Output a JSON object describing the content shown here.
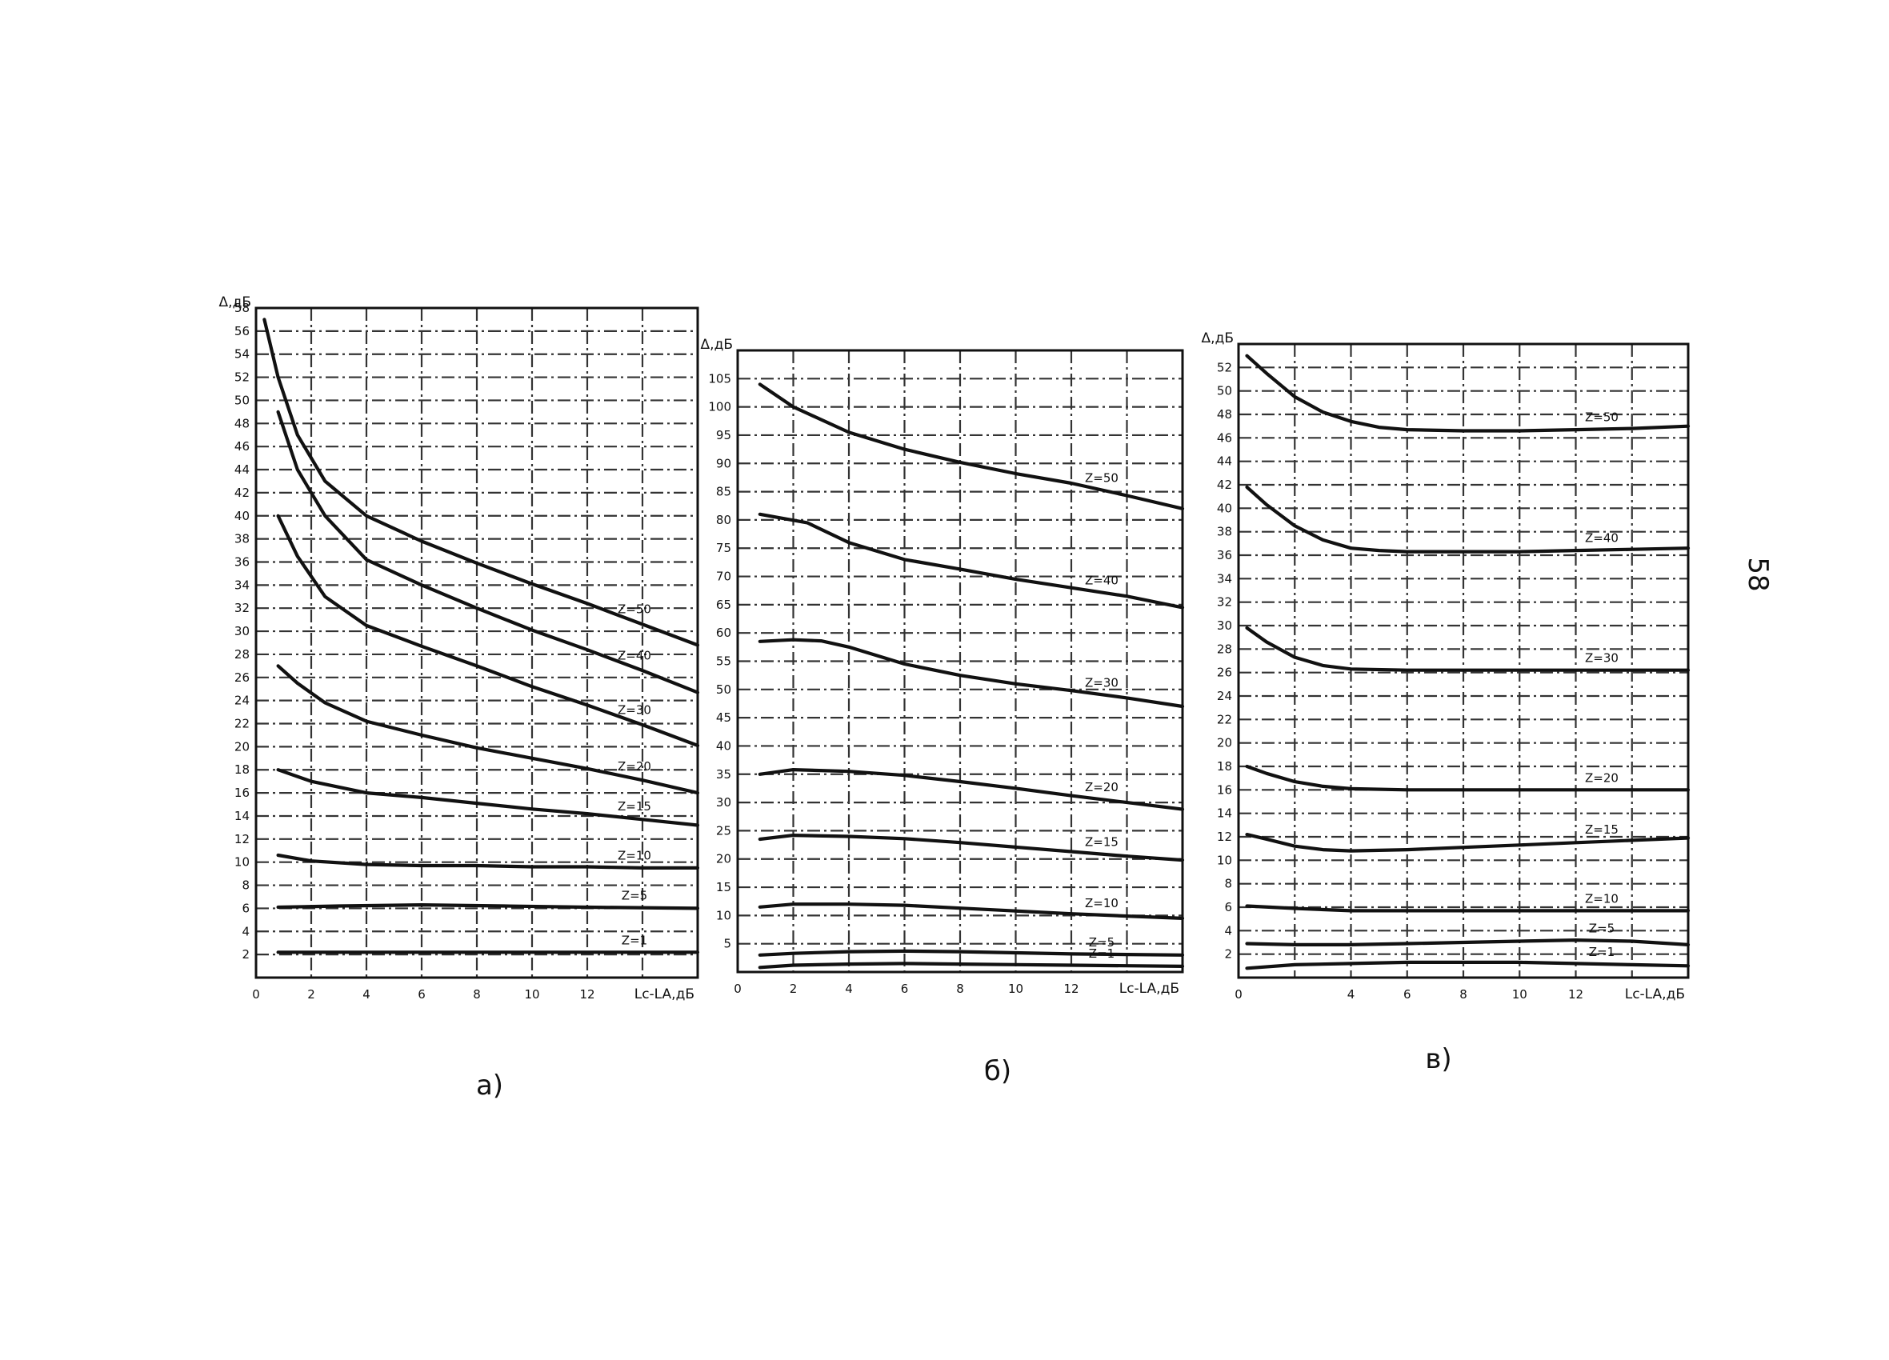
{
  "page_number": "58",
  "chart_data": [
    {
      "type": "line",
      "caption": "а)",
      "ylabel": "Δ,дБ",
      "xlabel": "Lc-LA,дБ",
      "xlim": [
        0,
        16
      ],
      "ylim": [
        0,
        58
      ],
      "x_ticks": [
        "0",
        "2",
        "4",
        "6",
        "8",
        "10",
        "12"
      ],
      "y_ticks": [
        "2",
        "4",
        "6",
        "8",
        "10",
        "12",
        "14",
        "16",
        "18",
        "20",
        "22",
        "24",
        "26",
        "28",
        "30",
        "32",
        "34",
        "36",
        "38",
        "40",
        "42",
        "44",
        "46",
        "48",
        "50",
        "52",
        "54",
        "56",
        "58"
      ],
      "grid": true,
      "series": [
        {
          "name": "Z=50",
          "x": [
            0.3,
            0.8,
            1.5,
            2.5,
            4,
            6,
            8,
            10,
            12,
            14,
            16
          ],
          "y": [
            57,
            52,
            47,
            43,
            40,
            37.8,
            35.9,
            34.1,
            32.4,
            30.6,
            28.8
          ]
        },
        {
          "name": "Z=40",
          "x": [
            0.8,
            1.5,
            2.5,
            4,
            6,
            8,
            10,
            12,
            14,
            16
          ],
          "y": [
            49,
            44,
            40,
            36.2,
            34,
            32,
            30.1,
            28.4,
            26.6,
            24.7
          ]
        },
        {
          "name": "Z=30",
          "x": [
            0.8,
            1.5,
            2.5,
            4,
            6,
            8,
            10,
            12,
            14,
            16
          ],
          "y": [
            40,
            36.5,
            33,
            30.5,
            28.7,
            27,
            25.2,
            23.6,
            21.9,
            20.1
          ]
        },
        {
          "name": "Z=20",
          "x": [
            0.8,
            1.5,
            2.5,
            4,
            6,
            8,
            10,
            12,
            14,
            16
          ],
          "y": [
            27,
            25.5,
            23.8,
            22.2,
            21,
            19.9,
            19,
            18.1,
            17.1,
            16
          ]
        },
        {
          "name": "Z=15",
          "x": [
            0.8,
            2,
            4,
            6,
            8,
            10,
            12,
            14,
            16
          ],
          "y": [
            18,
            17,
            16,
            15.6,
            15.1,
            14.6,
            14.2,
            13.7,
            13.2
          ]
        },
        {
          "name": "Z=10",
          "x": [
            0.8,
            2,
            4,
            6,
            8,
            10,
            12,
            14,
            16
          ],
          "y": [
            10.6,
            10.1,
            9.8,
            9.7,
            9.7,
            9.6,
            9.6,
            9.5,
            9.5
          ]
        },
        {
          "name": "Z=5",
          "x": [
            0.8,
            3,
            6,
            9,
            12,
            16
          ],
          "y": [
            6.1,
            6.2,
            6.3,
            6.2,
            6.1,
            6
          ]
        },
        {
          "name": "Z=1",
          "x": [
            0.8,
            4,
            8,
            12,
            16
          ],
          "y": [
            2.2,
            2.2,
            2.2,
            2.2,
            2.2
          ]
        }
      ]
    },
    {
      "type": "line",
      "caption": "б)",
      "ylabel": "Δ,дБ",
      "xlabel": "Lc-LA,дБ",
      "xlim": [
        0,
        16
      ],
      "ylim": [
        0,
        110
      ],
      "x_ticks": [
        "0",
        "2",
        "4",
        "6",
        "8",
        "10",
        "12"
      ],
      "y_ticks": [
        "5",
        "10",
        "15",
        "20",
        "25",
        "30",
        "35",
        "40",
        "45",
        "50",
        "55",
        "60",
        "65",
        "70",
        "75",
        "80",
        "85",
        "90",
        "95",
        "100",
        "105"
      ],
      "grid": true,
      "series": [
        {
          "name": "Z=50",
          "x": [
            0.8,
            2,
            4,
            6,
            8,
            10,
            12,
            14,
            16
          ],
          "y": [
            104,
            100,
            95.5,
            92.5,
            90.2,
            88.2,
            86.5,
            84.3,
            82
          ]
        },
        {
          "name": "Z=40",
          "x": [
            0.8,
            2.5,
            4,
            6,
            8,
            10,
            12,
            14,
            16
          ],
          "y": [
            81,
            79.5,
            76,
            73,
            71.3,
            69.5,
            68,
            66.5,
            64.5
          ]
        },
        {
          "name": "Z=30",
          "x": [
            0.8,
            2,
            3,
            4,
            6,
            8,
            10,
            12,
            14,
            16
          ],
          "y": [
            58.5,
            58.8,
            58.6,
            57.5,
            54.5,
            52.5,
            51,
            49.8,
            48.5,
            47
          ]
        },
        {
          "name": "Z=20",
          "x": [
            0.8,
            2,
            4,
            6,
            8,
            10,
            12,
            14,
            16
          ],
          "y": [
            35,
            35.8,
            35.5,
            34.8,
            33.7,
            32.5,
            31.2,
            30,
            28.8
          ]
        },
        {
          "name": "Z=15",
          "x": [
            0.8,
            2,
            4,
            6,
            8,
            10,
            12,
            14,
            16
          ],
          "y": [
            23.5,
            24.2,
            24,
            23.6,
            22.9,
            22.1,
            21.3,
            20.5,
            19.8
          ]
        },
        {
          "name": "Z=10",
          "x": [
            0.8,
            2,
            4,
            6,
            8,
            10,
            12,
            14,
            16
          ],
          "y": [
            11.5,
            12,
            12,
            11.8,
            11.3,
            10.8,
            10.3,
            9.9,
            9.5
          ]
        },
        {
          "name": "Z=5",
          "x": [
            0.8,
            2,
            4,
            6,
            8,
            10,
            12,
            14,
            16
          ],
          "y": [
            3,
            3.3,
            3.6,
            3.7,
            3.6,
            3.4,
            3.2,
            3.1,
            3
          ]
        },
        {
          "name": "Z=1",
          "x": [
            0.8,
            2,
            4,
            6,
            8,
            10,
            12,
            14,
            16
          ],
          "y": [
            0.8,
            1.2,
            1.4,
            1.5,
            1.4,
            1.3,
            1.2,
            1.1,
            1
          ]
        }
      ]
    },
    {
      "type": "line",
      "caption": "в)",
      "ylabel": "Δ,дБ",
      "xlabel": "Lc-LA,дБ",
      "xlim": [
        0,
        16
      ],
      "ylim": [
        0,
        54
      ],
      "x_ticks": [
        "0",
        "",
        "4",
        "6",
        "8",
        "10",
        "12"
      ],
      "y_ticks": [
        "2",
        "4",
        "6",
        "8",
        "10",
        "12",
        "14",
        "16",
        "18",
        "20",
        "22",
        "24",
        "26",
        "28",
        "30",
        "32",
        "34",
        "36",
        "38",
        "40",
        "42",
        "44",
        "46",
        "48",
        "50",
        "52"
      ],
      "grid": true,
      "series": [
        {
          "name": "Z=50",
          "x": [
            0.3,
            1,
            2,
            3,
            4,
            5,
            6,
            8,
            10,
            12,
            14,
            16
          ],
          "y": [
            53,
            51.5,
            49.5,
            48.2,
            47.4,
            46.9,
            46.7,
            46.6,
            46.6,
            46.7,
            46.8,
            47
          ]
        },
        {
          "name": "Z=40",
          "x": [
            0.3,
            1,
            2,
            3,
            4,
            5,
            6,
            8,
            10,
            12,
            14,
            16
          ],
          "y": [
            41.8,
            40.3,
            38.5,
            37.3,
            36.6,
            36.4,
            36.3,
            36.3,
            36.3,
            36.4,
            36.5,
            36.6
          ]
        },
        {
          "name": "Z=30",
          "x": [
            0.3,
            1,
            2,
            3,
            4,
            6,
            8,
            10,
            12,
            14,
            16
          ],
          "y": [
            29.8,
            28.6,
            27.3,
            26.6,
            26.3,
            26.2,
            26.2,
            26.2,
            26.2,
            26.2,
            26.2
          ]
        },
        {
          "name": "Z=20",
          "x": [
            0.3,
            1,
            2,
            3,
            4,
            6,
            8,
            10,
            12,
            14,
            16
          ],
          "y": [
            18,
            17.4,
            16.7,
            16.3,
            16.1,
            16,
            16,
            16,
            16,
            16,
            16
          ]
        },
        {
          "name": "Z=15",
          "x": [
            0.3,
            1,
            2,
            3,
            4,
            6,
            8,
            10,
            12,
            14,
            16
          ],
          "y": [
            12.2,
            11.8,
            11.2,
            10.9,
            10.8,
            10.9,
            11.1,
            11.3,
            11.5,
            11.7,
            11.9
          ]
        },
        {
          "name": "Z=10",
          "x": [
            0.3,
            2,
            4,
            6,
            8,
            10,
            12,
            14,
            16
          ],
          "y": [
            6.1,
            5.9,
            5.7,
            5.7,
            5.7,
            5.7,
            5.7,
            5.7,
            5.7
          ]
        },
        {
          "name": "Z=5",
          "x": [
            0.3,
            2,
            4,
            6,
            8,
            10,
            12,
            14,
            16
          ],
          "y": [
            2.9,
            2.8,
            2.8,
            2.9,
            3,
            3.1,
            3.2,
            3.1,
            2.8
          ]
        },
        {
          "name": "Z=1",
          "x": [
            0.3,
            2,
            4,
            6,
            8,
            10,
            12,
            14,
            16
          ],
          "y": [
            0.8,
            1.1,
            1.2,
            1.3,
            1.3,
            1.3,
            1.2,
            1.1,
            1
          ]
        }
      ]
    }
  ]
}
